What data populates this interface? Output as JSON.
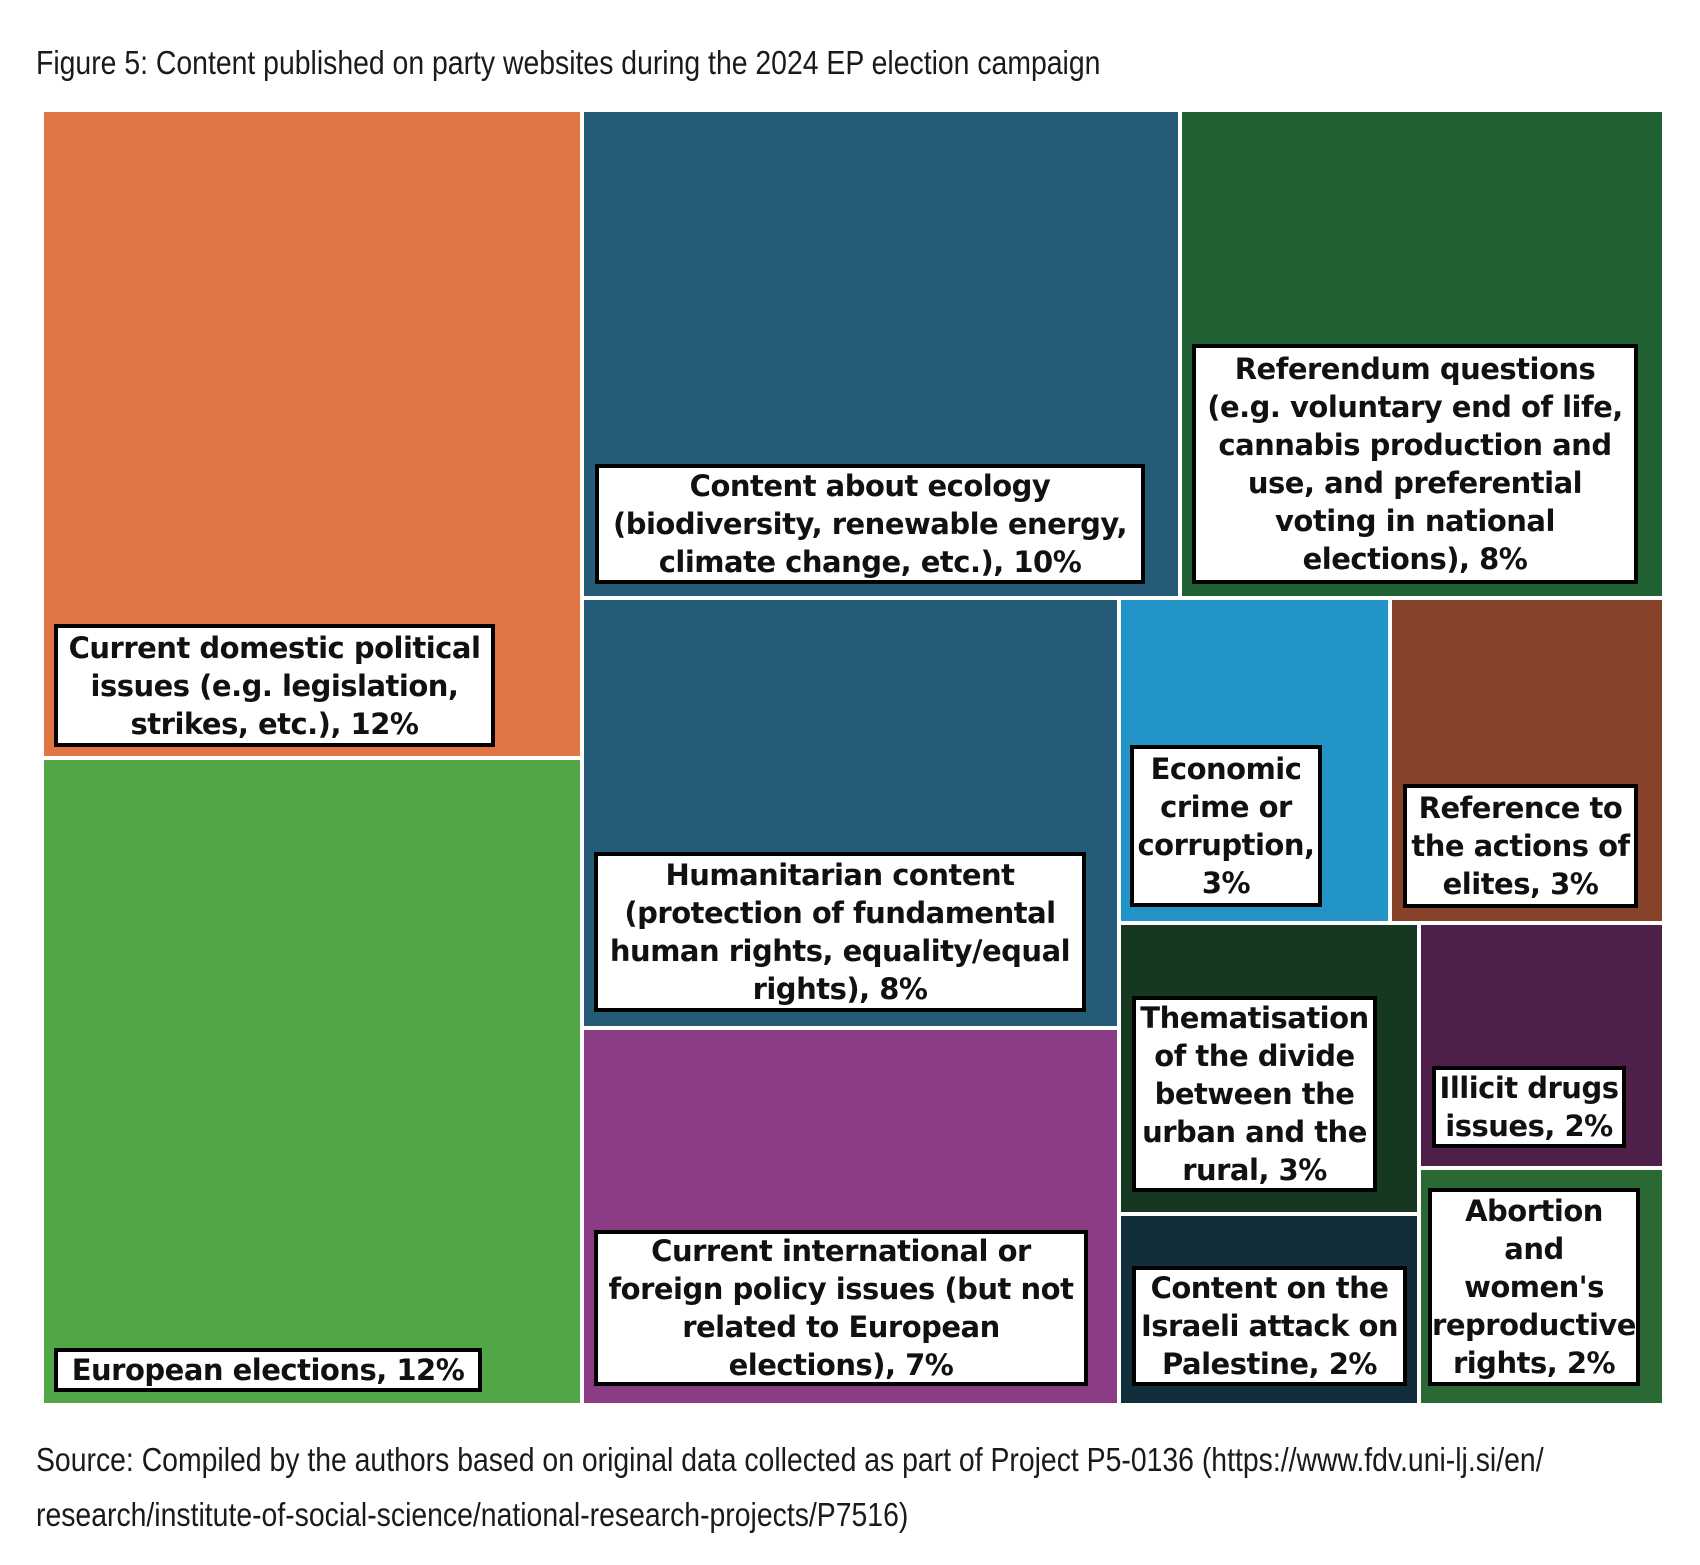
{
  "title": "Figure 5: Content published on party websites during the 2024 EP election campaign",
  "source": {
    "line1": "Source: Compiled by the authors based on original data collected as part of Project P5-0136 (https://www.fdv.uni-lj.si/en/",
    "line2": "research/institute-of-social-science/national-research-projects/P7516)"
  },
  "chart_data": {
    "type": "treemap",
    "unit": "%",
    "items": [
      {
        "label": "Current domestic political issues (e.g. legislation, strikes, etc.), 12%",
        "value": 12,
        "color": "#E07442"
      },
      {
        "label": "European elections, 12%",
        "value": 12,
        "color": "#51A647"
      },
      {
        "label": "Content about ecology (biodiversity, renewable energy, climate change, etc.), 10%",
        "value": 10,
        "color": "#245C78"
      },
      {
        "label": "Referendum questions (e.g. voluntary end of life, cannabis production and use, and preferential voting in national elections), 8%",
        "value": 8,
        "color": "#206033"
      },
      {
        "label": "Humanitarian content (protection of fundamental human rights, equality/equal rights), 8%",
        "value": 8,
        "color": "#245C78"
      },
      {
        "label": "Current international or foreign policy issues (but not related to European elections), 7%",
        "value": 7,
        "color": "#8A3C85"
      },
      {
        "label": "Economic crime or corruption, 3%",
        "value": 3,
        "color": "#2294C8"
      },
      {
        "label": "Reference to the actions of elites, 3%",
        "value": 3,
        "color": "#87432A"
      },
      {
        "label": "Thematisation of the divide between the urban and the rural, 3%",
        "value": 3,
        "color": "#173820"
      },
      {
        "label": "Illicit drugs issues, 2%",
        "value": 2,
        "color": "#4E1F48"
      },
      {
        "label": "Content on the Israeli attack on Palestine, 2%",
        "value": 2,
        "color": "#132E3B"
      },
      {
        "label": "Abortion and women's reproductive rights, 2%",
        "value": 2,
        "color": "#2B6934"
      }
    ]
  }
}
